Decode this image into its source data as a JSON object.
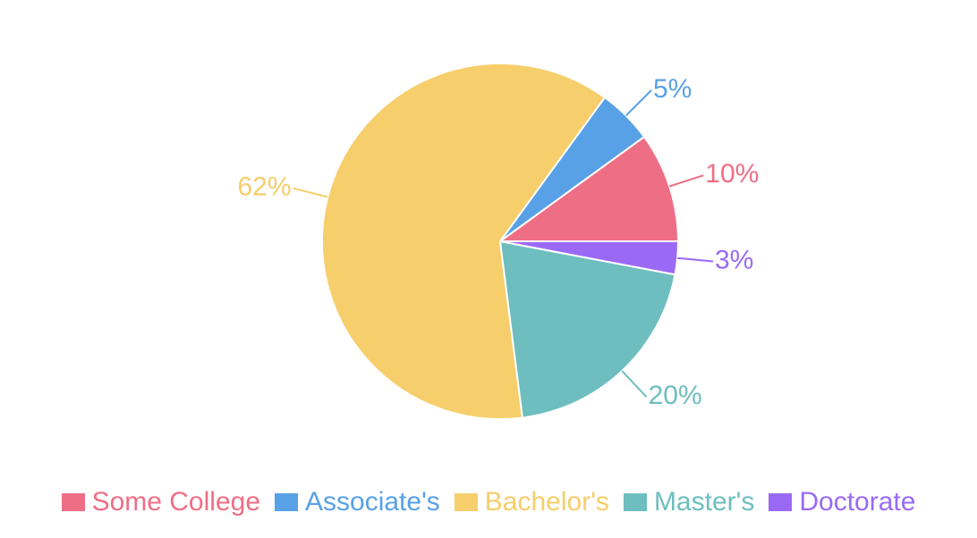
{
  "chart_data": {
    "type": "pie",
    "categories": [
      "Some College",
      "Associate's",
      "Bachelor's",
      "Master's",
      "Doctorate"
    ],
    "values": [
      10,
      5,
      62,
      20,
      3
    ],
    "data_labels": [
      "10%",
      "5%",
      "62%",
      "20%",
      "3%"
    ],
    "colors": [
      "#EE6E85",
      "#58A1E6",
      "#F6CE6B",
      "#6EBEBF",
      "#9A6AF7"
    ],
    "start_angle": "3 o'clock",
    "direction": "counter-clockwise",
    "legend_position": "bottom"
  },
  "legend": {
    "items": [
      {
        "label": "Some College",
        "color": "#EE6E85"
      },
      {
        "label": "Associate's",
        "color": "#58A1E6"
      },
      {
        "label": "Bachelor's",
        "color": "#F6CE6B"
      },
      {
        "label": "Master's",
        "color": "#6EBEBF"
      },
      {
        "label": "Doctorate",
        "color": "#9A6AF7"
      }
    ]
  }
}
